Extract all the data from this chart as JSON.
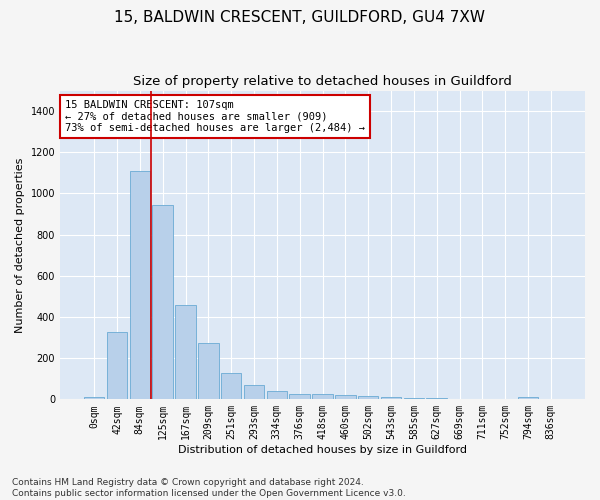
{
  "title1": "15, BALDWIN CRESCENT, GUILDFORD, GU4 7XW",
  "title2": "Size of property relative to detached houses in Guildford",
  "xlabel": "Distribution of detached houses by size in Guildford",
  "ylabel": "Number of detached properties",
  "footnote": "Contains HM Land Registry data © Crown copyright and database right 2024.\nContains public sector information licensed under the Open Government Licence v3.0.",
  "bar_labels": [
    "0sqm",
    "42sqm",
    "84sqm",
    "125sqm",
    "167sqm",
    "209sqm",
    "251sqm",
    "293sqm",
    "334sqm",
    "376sqm",
    "418sqm",
    "460sqm",
    "502sqm",
    "543sqm",
    "585sqm",
    "627sqm",
    "669sqm",
    "711sqm",
    "752sqm",
    "794sqm",
    "836sqm"
  ],
  "bar_values": [
    10,
    325,
    1110,
    945,
    460,
    275,
    130,
    70,
    40,
    25,
    25,
    20,
    15,
    10,
    5,
    5,
    3,
    3,
    0,
    10,
    0
  ],
  "bar_color": "#b8d0ea",
  "bar_edge_color": "#6aaad4",
  "property_line_x": 2.5,
  "annotation_text": "15 BALDWIN CRESCENT: 107sqm\n← 27% of detached houses are smaller (909)\n73% of semi-detached houses are larger (2,484) →",
  "annotation_box_facecolor": "#ffffff",
  "annotation_box_edgecolor": "#cc0000",
  "vline_color": "#cc0000",
  "ylim_max": 1500,
  "yticks": [
    0,
    200,
    400,
    600,
    800,
    1000,
    1200,
    1400
  ],
  "bg_color": "#dde8f5",
  "grid_color": "#ffffff",
  "fig_facecolor": "#f5f5f5",
  "title1_fontsize": 11,
  "title2_fontsize": 9.5,
  "axis_label_fontsize": 8,
  "tick_fontsize": 7,
  "annotation_fontsize": 7.5,
  "footnote_fontsize": 6.5
}
